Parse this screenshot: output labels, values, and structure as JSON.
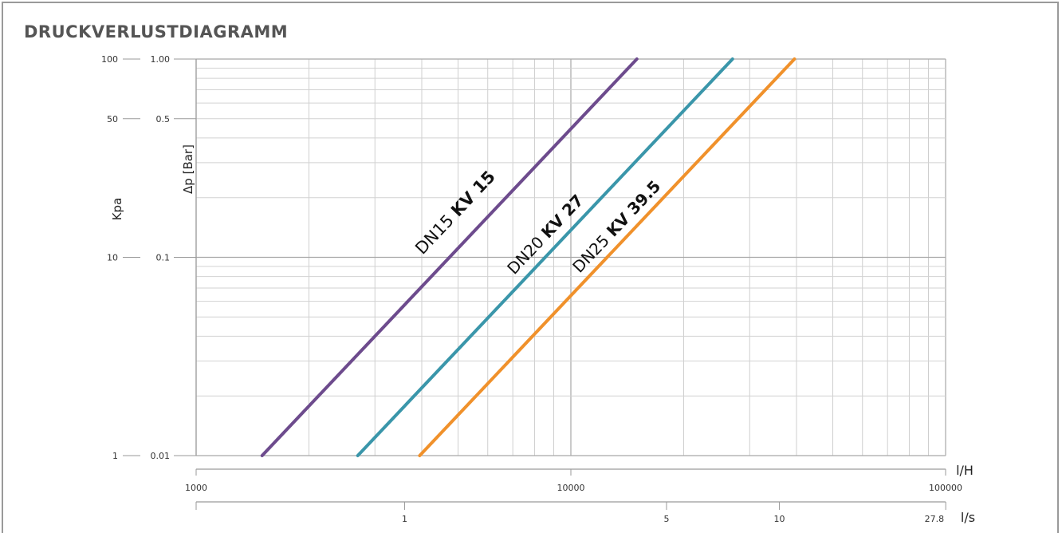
{
  "header": {
    "title": "DRUCKVERLUSTDIAGRAMM"
  },
  "chart_data": {
    "type": "line",
    "title": "DRUCKVERLUSTDIAGRAMM",
    "x_scale": "log",
    "y_scale": "log",
    "xlim": [
      1000,
      100000
    ],
    "ylim": [
      0.01,
      1.0
    ],
    "xlabel": "l/H",
    "x2label": "l/s",
    "ylabel_left": "Kpa",
    "ylabel_right": "Δp [Bar]",
    "x_ticks": [
      {
        "value": 1000,
        "label": "1000"
      },
      {
        "value": 10000,
        "label": "10000"
      },
      {
        "value": 100000,
        "label": "100000"
      }
    ],
    "x2_ticks": [
      {
        "value": 1,
        "label": "1"
      },
      {
        "value": 5,
        "label": "5"
      },
      {
        "value": 10,
        "label": "10"
      },
      {
        "value": 27.8,
        "label": "27.8"
      }
    ],
    "y_ticks_bar": [
      {
        "value": 1.0,
        "label": "1.00"
      },
      {
        "value": 0.5,
        "label": "0.5"
      },
      {
        "value": 0.1,
        "label": "0.1"
      },
      {
        "value": 0.01,
        "label": "0.01"
      }
    ],
    "y_ticks_kpa": [
      {
        "value": 100,
        "label": "100"
      },
      {
        "value": 50,
        "label": "50"
      },
      {
        "value": 10,
        "label": "10"
      },
      {
        "value": 1,
        "label": "1"
      }
    ],
    "grid": true,
    "series": [
      {
        "label_dn": "DN15",
        "label_kv": "KV 15",
        "kv": 15,
        "color": "#6d4b8d",
        "x": [
          1500,
          15000
        ],
        "y": [
          0.01,
          1.0
        ]
      },
      {
        "label_dn": "DN20",
        "label_kv": "KV 27",
        "kv": 27,
        "color": "#3a96aa",
        "x": [
          2700,
          27000
        ],
        "y": [
          0.01,
          1.0
        ]
      },
      {
        "label_dn": "DN25",
        "label_kv": "KV 39.5",
        "kv": 39.5,
        "color": "#f0912b",
        "x": [
          3950,
          39500
        ],
        "y": [
          0.01,
          1.0
        ]
      }
    ]
  }
}
